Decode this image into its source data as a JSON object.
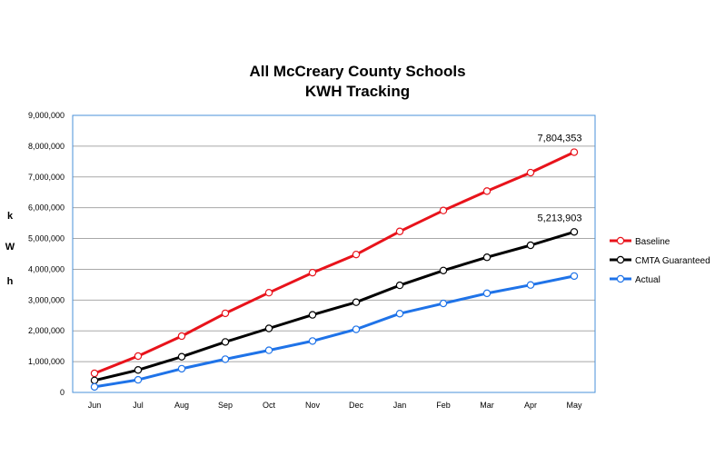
{
  "chart_data": {
    "type": "line",
    "title_lines": [
      "All McCreary County Schools",
      "KWH Tracking"
    ],
    "ylabel_letters": [
      "k",
      "W",
      "h"
    ],
    "categories": [
      "Jun",
      "Jul",
      "Aug",
      "Sep",
      "Oct",
      "Nov",
      "Dec",
      "Jan",
      "Feb",
      "Mar",
      "Apr",
      "May"
    ],
    "ylim": [
      0,
      9000000
    ],
    "yticks": [
      "0",
      "1,000,000",
      "2,000,000",
      "3,000,000",
      "4,000,000",
      "5,000,000",
      "6,000,000",
      "7,000,000",
      "8,000,000",
      "9,000,000"
    ],
    "grid": true,
    "legend_position": "right",
    "series": [
      {
        "name": "Baseline",
        "color": "#e8131b",
        "values": [
          620000,
          1180000,
          1830000,
          2570000,
          3240000,
          3890000,
          4480000,
          5230000,
          5910000,
          6540000,
          7140000,
          7804353
        ]
      },
      {
        "name": "CMTA Guaranteed",
        "color": "#000000",
        "values": [
          390000,
          730000,
          1160000,
          1640000,
          2080000,
          2520000,
          2930000,
          3480000,
          3960000,
          4390000,
          4780000,
          5213903
        ]
      },
      {
        "name": "Actual",
        "color": "#1f73e8",
        "values": [
          180000,
          410000,
          770000,
          1080000,
          1370000,
          1670000,
          2050000,
          2560000,
          2890000,
          3220000,
          3490000,
          3780000
        ]
      }
    ],
    "annotations": [
      {
        "series": 0,
        "text": "7,804,353"
      },
      {
        "series": 1,
        "text": "5,213,903"
      }
    ]
  }
}
